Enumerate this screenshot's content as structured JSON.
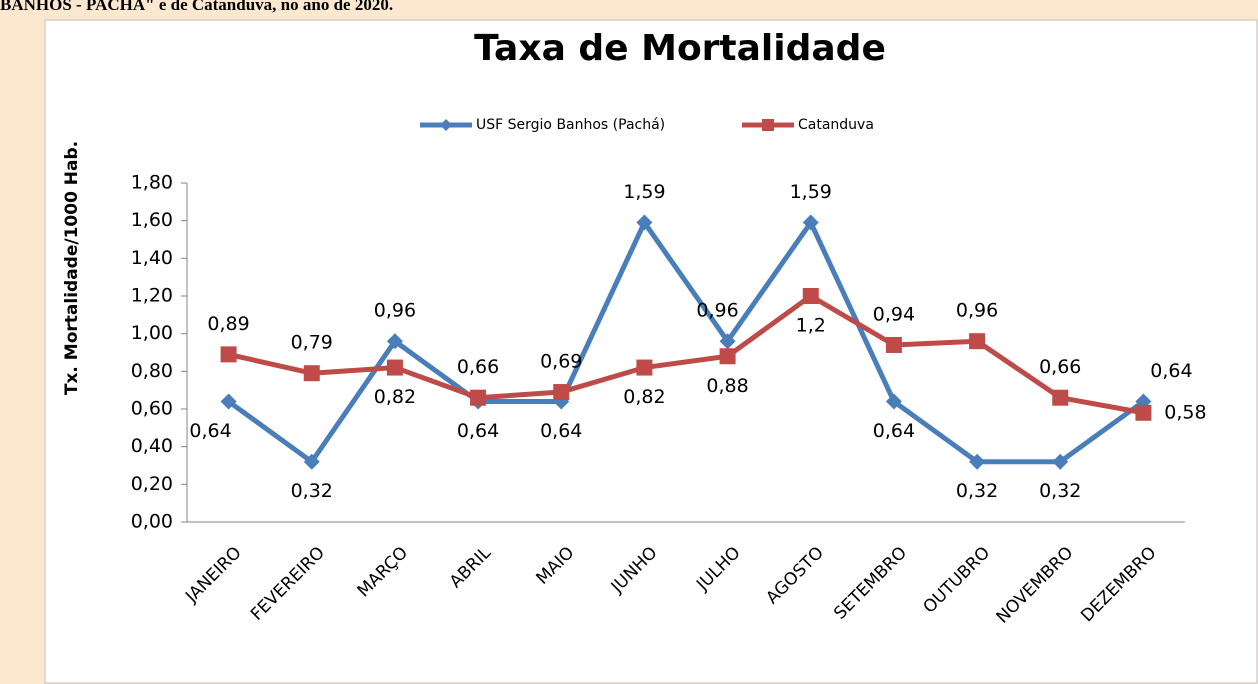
{
  "caption": "BANHOS - PACHÁ\" e de Catanduva, no ano de 2020.",
  "chart_data": {
    "type": "line",
    "title": "Taxa de Mortalidade",
    "y_label": "Tx. Mortalidade/1000 Hab.",
    "categories": [
      "JANEIRO",
      "FEVEREIRO",
      "MARÇO",
      "ABRIL",
      "MAIO",
      "JUNHO",
      "JULHO",
      "AGOSTO",
      "SETEMBRO",
      "OUTUBRO",
      "NOVEMBRO",
      "DEZEMBRO"
    ],
    "series": [
      {
        "name": "USF Sergio Banhos (Pachá)",
        "color": "#4a7ebb",
        "marker": "diamond",
        "values": [
          0.64,
          0.32,
          0.96,
          0.64,
          0.64,
          1.59,
          0.96,
          1.59,
          0.64,
          0.32,
          0.32,
          0.64
        ],
        "value_labels": [
          "0,64",
          "0,32",
          "0,96",
          "0,64",
          "0,64",
          "1,59",
          "0,96",
          "1,59",
          "0,64",
          "0,32",
          "0,32",
          "0,64"
        ]
      },
      {
        "name": "Catanduva",
        "color": "#be4b48",
        "marker": "square",
        "values": [
          0.89,
          0.79,
          0.82,
          0.66,
          0.69,
          0.82,
          0.88,
          1.2,
          0.94,
          0.96,
          0.66,
          0.58
        ],
        "value_labels": [
          "0,89",
          "0,79",
          "0,82",
          "0,66",
          "0,69",
          "0,82",
          "0,88",
          "1,2",
          "0,94",
          "0,96",
          "0,66",
          "0,58"
        ]
      }
    ],
    "ylim": [
      0,
      1.8
    ],
    "yticks": [
      {
        "value": 0,
        "label": "0,00"
      },
      {
        "value": 0.2,
        "label": "0,20"
      },
      {
        "value": 0.4,
        "label": "0,40"
      },
      {
        "value": 0.6,
        "label": "0,60"
      },
      {
        "value": 0.8,
        "label": "0,80"
      },
      {
        "value": 1,
        "label": "1,00"
      },
      {
        "value": 1.2,
        "label": "1,20"
      },
      {
        "value": 1.4,
        "label": "1,40"
      },
      {
        "value": 1.6,
        "label": "1,60"
      },
      {
        "value": 1.8,
        "label": "1,80"
      }
    ],
    "legend": "top"
  }
}
